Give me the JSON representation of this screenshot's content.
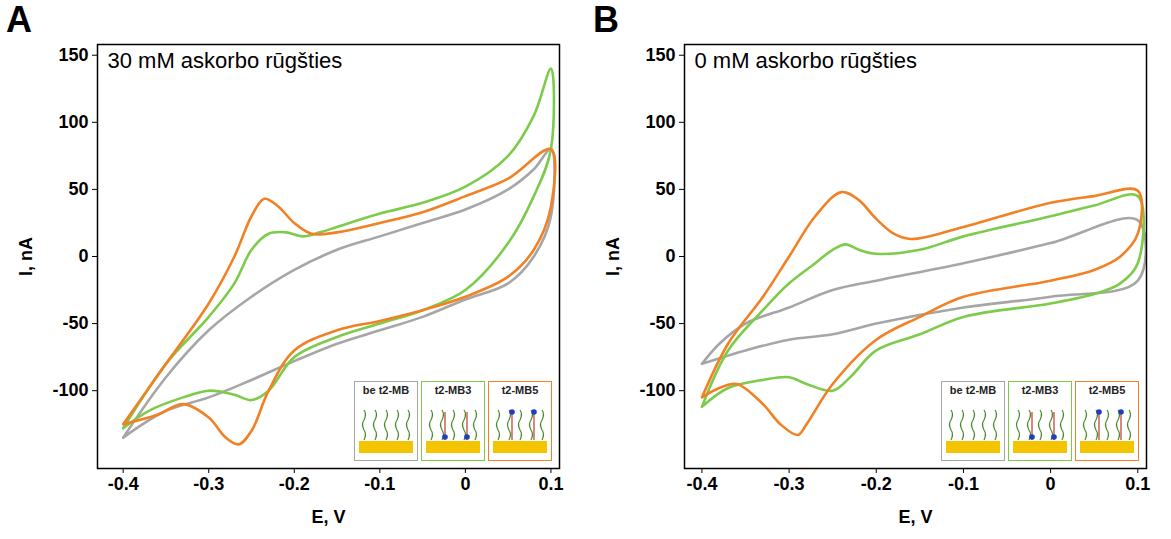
{
  "chart_data": [
    {
      "type": "line",
      "panel_label": "A",
      "title": "30 mM askorbo rūgšties",
      "x_label": "E, V",
      "y_label": "I, nA",
      "xlim": [
        -0.43,
        0.11
      ],
      "ylim": [
        -158,
        158
      ],
      "xticks": [
        -0.4,
        -0.3,
        -0.2,
        -0.1,
        0,
        0.1
      ],
      "yticks": [
        -100,
        -50,
        0,
        50,
        100,
        150
      ],
      "grid": false,
      "legend": "bottom-right",
      "series": [
        {
          "name": "be t2-MB",
          "color": "#a6a6a6",
          "x": [
            -0.4,
            -0.35,
            -0.3,
            -0.25,
            -0.2,
            -0.15,
            -0.1,
            -0.05,
            0,
            0.05,
            0.08,
            0.1,
            0.1,
            0.08,
            0.05,
            0,
            -0.05,
            -0.1,
            -0.15,
            -0.2,
            -0.25,
            -0.3,
            -0.35,
            -0.4
          ],
          "values": [
            -135,
            -90,
            -55,
            -30,
            -10,
            5,
            15,
            25,
            35,
            50,
            65,
            80,
            30,
            0,
            -20,
            -32,
            -45,
            -55,
            -65,
            -78,
            -92,
            -105,
            -115,
            -135
          ]
        },
        {
          "name": "t2-MB3",
          "color": "#7ccb4a",
          "x": [
            -0.4,
            -0.35,
            -0.3,
            -0.27,
            -0.25,
            -0.23,
            -0.21,
            -0.19,
            -0.17,
            -0.15,
            -0.1,
            -0.05,
            0,
            0.05,
            0.08,
            0.1,
            0.1,
            0.08,
            0.05,
            0,
            -0.05,
            -0.1,
            -0.15,
            -0.2,
            -0.23,
            -0.25,
            -0.27,
            -0.3,
            -0.33,
            -0.37,
            -0.4
          ],
          "values": [
            -128,
            -80,
            -45,
            -20,
            5,
            17,
            18,
            15,
            18,
            22,
            32,
            40,
            52,
            75,
            105,
            140,
            80,
            45,
            10,
            -25,
            -40,
            -50,
            -60,
            -75,
            -100,
            -107,
            -103,
            -100,
            -105,
            -115,
            -128
          ]
        },
        {
          "name": "t2-MB5",
          "color": "#f28024",
          "x": [
            -0.4,
            -0.35,
            -0.3,
            -0.27,
            -0.25,
            -0.235,
            -0.22,
            -0.2,
            -0.18,
            -0.15,
            -0.1,
            -0.05,
            0,
            0.05,
            0.1,
            0.1,
            0.08,
            0.05,
            0,
            -0.05,
            -0.1,
            -0.15,
            -0.2,
            -0.23,
            -0.25,
            -0.265,
            -0.28,
            -0.3,
            -0.33,
            -0.36,
            -0.4
          ],
          "values": [
            -125,
            -80,
            -35,
            0,
            30,
            43,
            38,
            25,
            17,
            18,
            25,
            33,
            45,
            58,
            80,
            37,
            5,
            -15,
            -30,
            -40,
            -48,
            -55,
            -70,
            -100,
            -130,
            -140,
            -135,
            -120,
            -110,
            -118,
            -125
          ]
        }
      ]
    },
    {
      "type": "line",
      "panel_label": "B",
      "title": "0 mM askorbo rūgšties",
      "x_label": "E, V",
      "y_label": "I, nA",
      "xlim": [
        -0.42,
        0.11
      ],
      "ylim": [
        -158,
        158
      ],
      "xticks": [
        -0.4,
        -0.3,
        -0.2,
        -0.1,
        0,
        0.1
      ],
      "yticks": [
        -100,
        -50,
        0,
        50,
        100,
        150
      ],
      "grid": false,
      "legend": "bottom-right",
      "series": [
        {
          "name": "be t2-MB",
          "color": "#a6a6a6",
          "x": [
            -0.4,
            -0.38,
            -0.35,
            -0.3,
            -0.25,
            -0.2,
            -0.1,
            0,
            0.1,
            0.1,
            0,
            -0.1,
            -0.2,
            -0.25,
            -0.3,
            -0.35,
            -0.4
          ],
          "values": [
            -80,
            -65,
            -50,
            -38,
            -25,
            -18,
            -5,
            10,
            27,
            -18,
            -30,
            -38,
            -50,
            -58,
            -62,
            -70,
            -80
          ]
        },
        {
          "name": "t2-MB3",
          "color": "#7ccb4a",
          "x": [
            -0.4,
            -0.37,
            -0.33,
            -0.3,
            -0.27,
            -0.25,
            -0.235,
            -0.22,
            -0.2,
            -0.15,
            -0.1,
            0,
            0.05,
            0.1,
            0.1,
            0.08,
            0.05,
            0,
            -0.1,
            -0.15,
            -0.2,
            -0.23,
            -0.25,
            -0.28,
            -0.3,
            -0.33,
            -0.37,
            -0.4
          ],
          "values": [
            -112,
            -70,
            -40,
            -20,
            -5,
            5,
            9,
            5,
            2,
            5,
            15,
            30,
            38,
            45,
            -5,
            -20,
            -28,
            -35,
            -45,
            -58,
            -70,
            -90,
            -100,
            -95,
            -90,
            -92,
            -98,
            -112
          ]
        },
        {
          "name": "t2-MB5",
          "color": "#f28024",
          "x": [
            -0.4,
            -0.37,
            -0.33,
            -0.3,
            -0.27,
            -0.24,
            -0.22,
            -0.2,
            -0.18,
            -0.16,
            -0.1,
            0,
            0.05,
            0.1,
            0.1,
            0.08,
            0.05,
            0,
            -0.1,
            -0.15,
            -0.2,
            -0.25,
            -0.28,
            -0.29,
            -0.31,
            -0.33,
            -0.36,
            -0.38,
            -0.4
          ],
          "values": [
            -105,
            -65,
            -30,
            0,
            30,
            48,
            42,
            28,
            17,
            13,
            22,
            40,
            45,
            49,
            17,
            0,
            -10,
            -18,
            -30,
            -45,
            -62,
            -95,
            -125,
            -133,
            -125,
            -110,
            -95,
            -98,
            -105
          ]
        }
      ]
    }
  ]
}
